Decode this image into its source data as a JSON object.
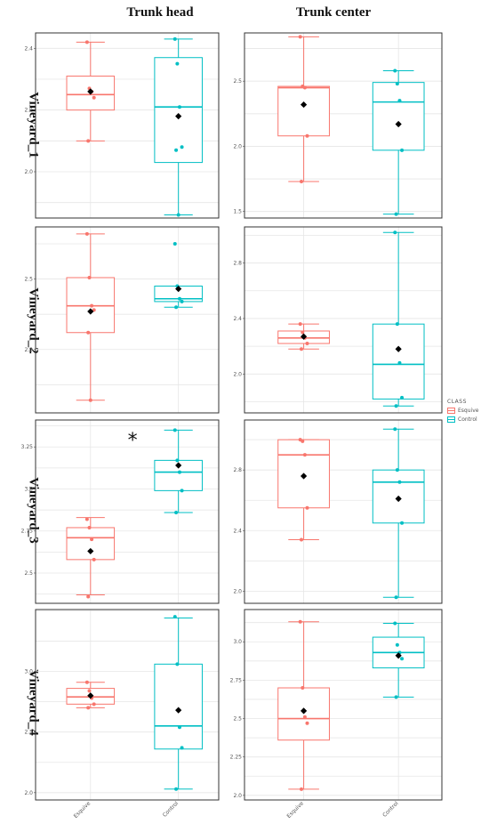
{
  "columns": [
    "Trunk head",
    "Trunk center"
  ],
  "rows": [
    "Vineyard_1",
    "Vineyard_2",
    "Vineyard_3",
    "Vineyard_4"
  ],
  "legend": {
    "title": "CLASS",
    "items": [
      {
        "label": "Esquive",
        "color": "#F8766D"
      },
      {
        "label": "Control",
        "color": "#00BFC4"
      }
    ]
  },
  "chart_data": [
    {
      "type": "box",
      "row": "Vineyard_1",
      "column": "Trunk head",
      "categories": [
        "Esquive",
        "Control"
      ],
      "yticks": [
        2.0,
        2.2,
        2.4
      ],
      "ytick_labels": [
        "2.0",
        "2.2",
        "2.4"
      ],
      "ylim": [
        1.85,
        2.45
      ],
      "groups": [
        {
          "name": "Esquive",
          "color": "#F8766D",
          "min": 2.1,
          "q1": 2.2,
          "median": 2.25,
          "q3": 2.31,
          "max": 2.42,
          "mean": 2.26,
          "points": [
            2.42,
            2.27,
            2.26,
            2.24,
            2.1
          ]
        },
        {
          "name": "Control",
          "color": "#00BFC4",
          "min": 1.86,
          "q1": 2.03,
          "median": 2.21,
          "q3": 2.37,
          "max": 2.43,
          "mean": 2.18,
          "points": [
            2.43,
            2.35,
            2.21,
            2.08,
            2.07,
            1.86
          ]
        }
      ]
    },
    {
      "type": "box",
      "row": "Vineyard_1",
      "column": "Trunk center",
      "categories": [
        "Esquive",
        "Control"
      ],
      "yticks": [
        1.5,
        2.0,
        2.5
      ],
      "ytick_labels": [
        "1.5",
        "2.0",
        "2.5"
      ],
      "ylim": [
        1.45,
        2.87
      ],
      "groups": [
        {
          "name": "Esquive",
          "color": "#F8766D",
          "min": 1.73,
          "q1": 2.08,
          "median": 2.45,
          "q3": 2.46,
          "max": 2.84,
          "mean": 2.32,
          "points": [
            2.84,
            2.46,
            2.45,
            2.08,
            1.73
          ]
        },
        {
          "name": "Control",
          "color": "#00BFC4",
          "min": 1.48,
          "q1": 1.97,
          "median": 2.34,
          "q3": 2.49,
          "max": 2.58,
          "mean": 2.17,
          "points": [
            2.58,
            2.48,
            2.35,
            1.97,
            1.48
          ]
        }
      ]
    },
    {
      "type": "box",
      "row": "Vineyard_2",
      "column": "Trunk head",
      "categories": [
        "Esquive",
        "Control"
      ],
      "yticks": [
        2.0,
        2.5
      ],
      "ytick_labels": [
        "2.0",
        "2.5"
      ],
      "ylim": [
        1.55,
        2.87
      ],
      "groups": [
        {
          "name": "Esquive",
          "color": "#F8766D",
          "min": 1.64,
          "q1": 2.12,
          "median": 2.31,
          "q3": 2.51,
          "max": 2.82,
          "mean": 2.27,
          "points": [
            2.82,
            2.51,
            2.31,
            2.28,
            2.12,
            1.64
          ]
        },
        {
          "name": "Control",
          "color": "#00BFC4",
          "min": 2.3,
          "q1": 2.34,
          "median": 2.36,
          "q3": 2.45,
          "max": 2.45,
          "mean": 2.43,
          "points": [
            2.75,
            2.45,
            2.36,
            2.34,
            2.3
          ]
        }
      ]
    },
    {
      "type": "box",
      "row": "Vineyard_2",
      "column": "Trunk center",
      "categories": [
        "Esquive",
        "Control"
      ],
      "yticks": [
        2.0,
        2.4,
        2.8
      ],
      "ytick_labels": [
        "2.0",
        "2.4",
        "2.8"
      ],
      "ylim": [
        1.72,
        3.06
      ],
      "groups": [
        {
          "name": "Esquive",
          "color": "#F8766D",
          "min": 2.18,
          "q1": 2.22,
          "median": 2.26,
          "q3": 2.31,
          "max": 2.36,
          "mean": 2.27,
          "points": [
            2.36,
            2.3,
            2.26,
            2.22,
            2.18
          ]
        },
        {
          "name": "Control",
          "color": "#00BFC4",
          "min": 1.77,
          "q1": 1.82,
          "median": 2.07,
          "q3": 2.36,
          "max": 3.02,
          "mean": 2.18,
          "points": [
            3.02,
            2.36,
            2.08,
            1.83,
            1.77
          ]
        }
      ]
    },
    {
      "type": "box",
      "row": "Vineyard_3",
      "column": "Trunk head",
      "categories": [
        "Esquive",
        "Control"
      ],
      "yticks": [
        2.5,
        2.75,
        3.0,
        3.25
      ],
      "ytick_labels": [
        "2.5",
        "2.75",
        "3.0",
        "3.25"
      ],
      "ylim": [
        2.32,
        3.41
      ],
      "annotation": "*",
      "groups": [
        {
          "name": "Esquive",
          "color": "#F8766D",
          "min": 2.37,
          "q1": 2.58,
          "median": 2.71,
          "q3": 2.77,
          "max": 2.83,
          "mean": 2.63,
          "points": [
            2.82,
            2.77,
            2.7,
            2.58,
            2.36
          ]
        },
        {
          "name": "Control",
          "color": "#00BFC4",
          "min": 2.86,
          "q1": 2.99,
          "median": 3.1,
          "q3": 3.17,
          "max": 3.35,
          "mean": 3.14,
          "points": [
            3.35,
            3.17,
            3.1,
            2.99,
            2.86
          ]
        }
      ]
    },
    {
      "type": "box",
      "row": "Vineyard_3",
      "column": "Trunk center",
      "categories": [
        "Esquive",
        "Control"
      ],
      "yticks": [
        2.0,
        2.4,
        2.8
      ],
      "ytick_labels": [
        "2.0",
        "2.4",
        "2.8"
      ],
      "ylim": [
        1.92,
        3.13
      ],
      "groups": [
        {
          "name": "Esquive",
          "color": "#F8766D",
          "min": 2.34,
          "q1": 2.55,
          "median": 2.9,
          "q3": 3.0,
          "max": 3.0,
          "mean": 2.76,
          "points": [
            3.0,
            2.99,
            2.9,
            2.55,
            2.34
          ]
        },
        {
          "name": "Control",
          "color": "#00BFC4",
          "min": 1.96,
          "q1": 2.45,
          "median": 2.72,
          "q3": 2.8,
          "max": 3.07,
          "mean": 2.61,
          "points": [
            3.07,
            2.8,
            2.72,
            2.45,
            1.96
          ]
        }
      ]
    },
    {
      "type": "box",
      "row": "Vineyard_4",
      "column": "Trunk head",
      "categories": [
        "Esquive",
        "Control"
      ],
      "yticks": [
        2.0,
        2.5,
        3.0
      ],
      "ytick_labels": [
        "2.0",
        "2.5",
        "3.0"
      ],
      "ylim": [
        1.94,
        3.51
      ],
      "groups": [
        {
          "name": "Esquive",
          "color": "#F8766D",
          "min": 2.7,
          "q1": 2.73,
          "median": 2.79,
          "q3": 2.86,
          "max": 2.91,
          "mean": 2.8,
          "points": [
            2.91,
            2.84,
            2.78,
            2.73,
            2.7
          ]
        },
        {
          "name": "Control",
          "color": "#00BFC4",
          "min": 2.03,
          "q1": 2.36,
          "median": 2.55,
          "q3": 3.06,
          "max": 3.44,
          "mean": 2.68,
          "points": [
            3.45,
            3.06,
            2.54,
            2.37,
            2.03
          ]
        }
      ]
    },
    {
      "type": "box",
      "row": "Vineyard_4",
      "column": "Trunk center",
      "categories": [
        "Esquive",
        "Control"
      ],
      "yticks": [
        2.0,
        2.25,
        2.5,
        2.75,
        3.0
      ],
      "ytick_labels": [
        "2.0",
        "2.25",
        "2.5",
        "2.75",
        "3.0"
      ],
      "ylim": [
        1.97,
        3.21
      ],
      "groups": [
        {
          "name": "Esquive",
          "color": "#F8766D",
          "min": 2.04,
          "q1": 2.36,
          "median": 2.5,
          "q3": 2.7,
          "max": 3.13,
          "mean": 2.55,
          "points": [
            3.13,
            2.7,
            2.51,
            2.47,
            2.04
          ]
        },
        {
          "name": "Control",
          "color": "#00BFC4",
          "min": 2.64,
          "q1": 2.83,
          "median": 2.93,
          "q3": 3.03,
          "max": 3.12,
          "mean": 2.91,
          "points": [
            3.12,
            2.98,
            2.93,
            2.89,
            2.64
          ]
        }
      ]
    }
  ]
}
